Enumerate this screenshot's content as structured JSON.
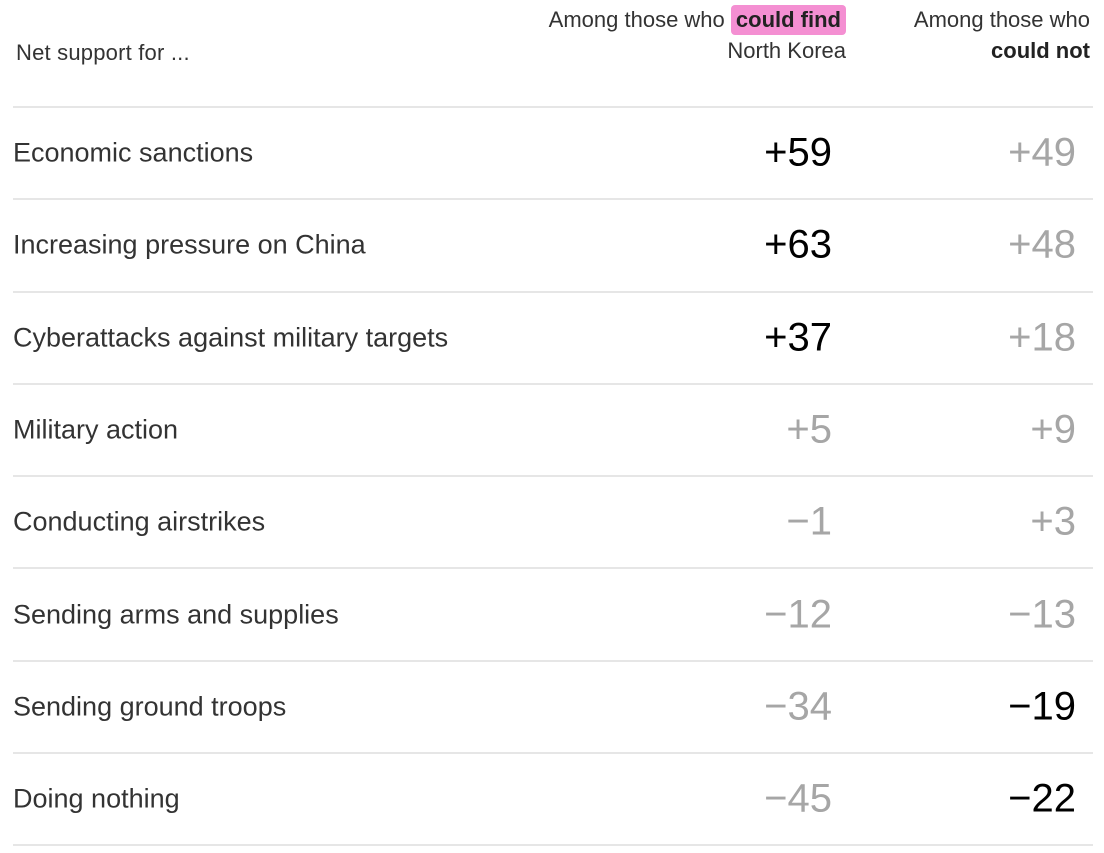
{
  "chart_data": {
    "type": "table",
    "row_header": "Net support for ...",
    "columns": [
      {
        "prefix": "Among those who",
        "highlight": "could find",
        "suffix": "North Korea"
      },
      {
        "prefix": "Among those who",
        "highlight": "could not",
        "suffix": ""
      }
    ],
    "rows": [
      {
        "label": "Economic sanctions",
        "values": [
          "+59",
          "+49"
        ],
        "emphasis": [
          true,
          false
        ]
      },
      {
        "label": "Increasing pressure on China",
        "values": [
          "+63",
          "+48"
        ],
        "emphasis": [
          true,
          false
        ]
      },
      {
        "label": "Cyberattacks against military targets",
        "values": [
          "+37",
          "+18"
        ],
        "emphasis": [
          true,
          false
        ]
      },
      {
        "label": "Military action",
        "values": [
          "+5",
          "+9"
        ],
        "emphasis": [
          false,
          false
        ]
      },
      {
        "label": "Conducting airstrikes",
        "values": [
          "−1",
          "+3"
        ],
        "emphasis": [
          false,
          false
        ]
      },
      {
        "label": "Sending arms and supplies",
        "values": [
          "−12",
          "−13"
        ],
        "emphasis": [
          false,
          false
        ]
      },
      {
        "label": "Sending ground troops",
        "values": [
          "−34",
          "−19"
        ],
        "emphasis": [
          false,
          true
        ]
      },
      {
        "label": "Doing nothing",
        "values": [
          "−45",
          "−22"
        ],
        "emphasis": [
          false,
          true
        ]
      }
    ],
    "colors": {
      "highlight": "#f48fd2",
      "strong": "#000000",
      "weak": "#a6a6a6"
    }
  }
}
